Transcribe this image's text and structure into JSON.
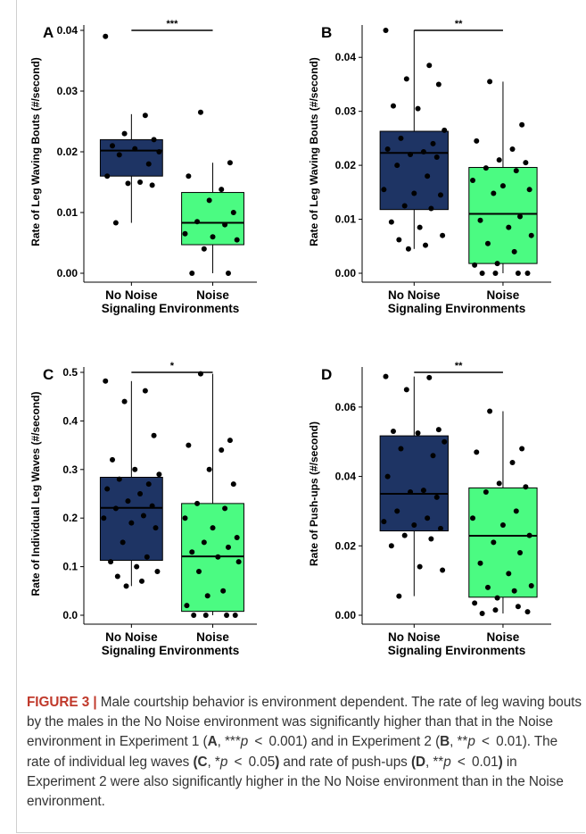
{
  "colors": {
    "no_noise_fill": "#1e3464",
    "noise_fill": "#4bfb82",
    "point": "#000000",
    "caption_label": "#c0392b",
    "caption_text": "#333333"
  },
  "chart_data": [
    {
      "type": "box",
      "panel_label": "A",
      "ylabel": "Rate of Leg Waving Bouts (#/second)",
      "xlabel": "Signaling Environments",
      "categories": [
        "No Noise",
        "Noise"
      ],
      "ylim": [
        0,
        0.04
      ],
      "yticks": [
        0.0,
        0.01,
        0.02,
        0.03,
        0.04
      ],
      "tick_labels": [
        "0.00",
        "0.01",
        "0.02",
        "0.03",
        "0.04"
      ],
      "significance": "***",
      "boxes": [
        {
          "min": 0.0083,
          "q1": 0.016,
          "median": 0.0202,
          "q3": 0.022,
          "max": 0.0262
        },
        {
          "min": 0.0,
          "q1": 0.0047,
          "median": 0.0083,
          "q3": 0.0133,
          "max": 0.0182
        }
      ],
      "points": [
        [
          0.039,
          0.026,
          0.023,
          0.022,
          0.021,
          0.0205,
          0.02,
          0.0195,
          0.018,
          0.016,
          0.015,
          0.0148,
          0.0145,
          0.0083
        ],
        [
          0.0265,
          0.0182,
          0.016,
          0.0138,
          0.012,
          0.01,
          0.0085,
          0.008,
          0.0065,
          0.006,
          0.0055,
          0.004,
          0.0,
          0.0
        ]
      ]
    },
    {
      "type": "box",
      "panel_label": "B",
      "ylabel": "Rate of Leg Waving Bouts (#/second)",
      "xlabel": "Signaling Environments",
      "categories": [
        "No Noise",
        "Noise"
      ],
      "ylim": [
        0,
        0.045
      ],
      "yticks": [
        0.0,
        0.01,
        0.02,
        0.03,
        0.04
      ],
      "tick_labels": [
        "0.00",
        "0.01",
        "0.02",
        "0.03",
        "0.04"
      ],
      "significance": "**",
      "boxes": [
        {
          "min": 0.0045,
          "q1": 0.0118,
          "median": 0.0223,
          "q3": 0.0263,
          "max": 0.045
        },
        {
          "min": 0.0,
          "q1": 0.0018,
          "median": 0.011,
          "q3": 0.0196,
          "max": 0.0355
        }
      ],
      "points": [
        [
          0.045,
          0.0385,
          0.036,
          0.035,
          0.031,
          0.0305,
          0.0265,
          0.025,
          0.024,
          0.023,
          0.0225,
          0.022,
          0.0215,
          0.02,
          0.018,
          0.0155,
          0.0148,
          0.0145,
          0.0125,
          0.012,
          0.0095,
          0.0085,
          0.007,
          0.0062,
          0.0052,
          0.0045
        ],
        [
          0.0355,
          0.0275,
          0.0245,
          0.023,
          0.021,
          0.0205,
          0.0195,
          0.019,
          0.0172,
          0.0162,
          0.0155,
          0.0148,
          0.0105,
          0.0098,
          0.0085,
          0.007,
          0.0055,
          0.004,
          0.0018,
          0.0015,
          0.0,
          0.0,
          0.0,
          0.0
        ]
      ]
    },
    {
      "type": "box",
      "panel_label": "C",
      "ylabel": "Rate of Individual Leg Waves (#/second)",
      "xlabel": "Signaling Environments",
      "categories": [
        "No Noise",
        "Noise"
      ],
      "ylim": [
        0,
        0.5
      ],
      "yticks": [
        0.0,
        0.1,
        0.2,
        0.3,
        0.4,
        0.5
      ],
      "tick_labels": [
        "0.0",
        "0.1",
        "0.2",
        "0.3",
        "0.4",
        "0.5"
      ],
      "significance": "*",
      "boxes": [
        {
          "min": 0.06,
          "q1": 0.113,
          "median": 0.221,
          "q3": 0.284,
          "max": 0.482
        },
        {
          "min": 0.0,
          "q1": 0.008,
          "median": 0.121,
          "q3": 0.23,
          "max": 0.497
        }
      ],
      "points": [
        [
          0.482,
          0.462,
          0.44,
          0.37,
          0.32,
          0.3,
          0.29,
          0.28,
          0.27,
          0.26,
          0.25,
          0.235,
          0.225,
          0.22,
          0.205,
          0.2,
          0.19,
          0.18,
          0.15,
          0.12,
          0.11,
          0.1,
          0.09,
          0.08,
          0.07,
          0.06
        ],
        [
          0.497,
          0.36,
          0.35,
          0.34,
          0.3,
          0.27,
          0.23,
          0.22,
          0.2,
          0.18,
          0.16,
          0.15,
          0.14,
          0.13,
          0.12,
          0.11,
          0.09,
          0.05,
          0.04,
          0.02,
          0.0,
          0.0,
          0.0,
          0.0
        ]
      ]
    },
    {
      "type": "box",
      "panel_label": "D",
      "ylabel": "Rate of Push-ups (#/second)",
      "xlabel": "Signaling Environments",
      "categories": [
        "No Noise",
        "Noise"
      ],
      "ylim": [
        0,
        0.07
      ],
      "yticks": [
        0.0,
        0.02,
        0.04,
        0.06
      ],
      "tick_labels": [
        "0.00",
        "0.02",
        "0.04",
        "0.06"
      ],
      "significance": "**",
      "boxes": [
        {
          "min": 0.0055,
          "q1": 0.0243,
          "median": 0.035,
          "q3": 0.0517,
          "max": 0.0688
        },
        {
          "min": 0.0005,
          "q1": 0.0052,
          "median": 0.0229,
          "q3": 0.0367,
          "max": 0.0588
        }
      ],
      "points": [
        [
          0.0688,
          0.0685,
          0.065,
          0.0535,
          0.053,
          0.0525,
          0.05,
          0.048,
          0.046,
          0.04,
          0.036,
          0.0355,
          0.034,
          0.03,
          0.028,
          0.027,
          0.026,
          0.025,
          0.023,
          0.022,
          0.02,
          0.014,
          0.013,
          0.0055
        ],
        [
          0.0588,
          0.048,
          0.047,
          0.044,
          0.038,
          0.037,
          0.0355,
          0.03,
          0.028,
          0.026,
          0.023,
          0.021,
          0.018,
          0.015,
          0.012,
          0.0085,
          0.008,
          0.007,
          0.005,
          0.0035,
          0.0025,
          0.0015,
          0.001,
          0.0005
        ]
      ]
    }
  ],
  "caption": {
    "label": "FIGURE 3 |",
    "segments": [
      {
        "t": " Male courtship behavior is environment dependent. The rate of leg waving bouts by the males in the No Noise environment was significantly higher than that in the Noise environment in Experiment 1 (",
        "s": "n"
      },
      {
        "t": "A",
        "s": "b"
      },
      {
        "t": ", ***",
        "s": "n"
      },
      {
        "t": "p",
        "s": "i"
      },
      {
        "t": " < 0.001) and in Experiment 2 (",
        "s": "n"
      },
      {
        "t": "B",
        "s": "b"
      },
      {
        "t": ", **",
        "s": "n"
      },
      {
        "t": "p",
        "s": "i"
      },
      {
        "t": " < 0.01). The rate of individual leg waves ",
        "s": "n"
      },
      {
        "t": "(C",
        "s": "b"
      },
      {
        "t": ", *",
        "s": "n"
      },
      {
        "t": "p",
        "s": "i"
      },
      {
        "t": " < 0.05",
        "s": "n"
      },
      {
        "t": ")",
        "s": "b"
      },
      {
        "t": " and rate of push-ups ",
        "s": "n"
      },
      {
        "t": "(D",
        "s": "b"
      },
      {
        "t": ", **",
        "s": "n"
      },
      {
        "t": "p",
        "s": "i"
      },
      {
        "t": " < 0.01",
        "s": "n"
      },
      {
        "t": ")",
        "s": "b"
      },
      {
        "t": " in Experiment 2 were also significantly higher in the No Noise environment than in the Noise environment.",
        "s": "n"
      }
    ]
  }
}
